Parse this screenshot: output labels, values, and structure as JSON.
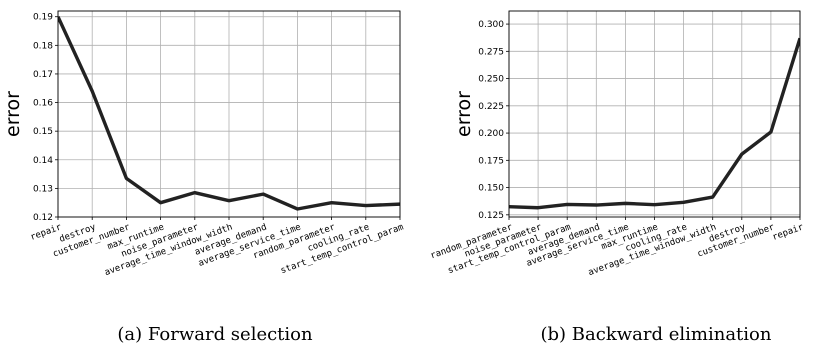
{
  "chart_data": [
    {
      "type": "line",
      "ylabel": "error",
      "caption": "(a) Forward selection",
      "categories": [
        "repair",
        "destroy",
        "customer_number",
        "max_runtime",
        "noise_parameter",
        "average_time_window_width",
        "average_demand",
        "average_service_time",
        "random_parameter",
        "cooling_rate",
        "start_temp_control_param"
      ],
      "values": [
        0.19,
        0.164,
        0.1335,
        0.125,
        0.1285,
        0.1257,
        0.128,
        0.1228,
        0.125,
        0.124,
        0.1245
      ],
      "ylim": [
        0.12,
        0.192
      ],
      "yticks": [
        "0.12",
        "0.13",
        "0.14",
        "0.15",
        "0.16",
        "0.17",
        "0.18",
        "0.19"
      ],
      "grid": true
    },
    {
      "type": "line",
      "ylabel": "error",
      "caption": "(b) Backward elimination",
      "categories": [
        "random_parameter",
        "noise_parameter",
        "start_temp_control_param",
        "average_demand",
        "average_service_time",
        "max_runtime",
        "cooling_rate",
        "average_time_window_width",
        "destroy",
        "customer_number",
        "repair"
      ],
      "values": [
        0.1325,
        0.1315,
        0.1345,
        0.134,
        0.1355,
        0.1343,
        0.1365,
        0.1413,
        0.1807,
        0.201,
        0.287
      ],
      "ylim": [
        0.123,
        0.312
      ],
      "yticks": [
        "0.125",
        "0.150",
        "0.175",
        "0.200",
        "0.225",
        "0.250",
        "0.275",
        "0.300"
      ],
      "grid": true
    }
  ]
}
